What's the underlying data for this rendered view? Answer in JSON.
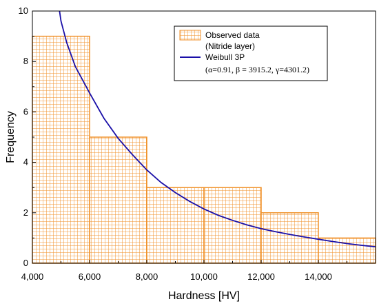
{
  "chart_data": {
    "type": "bar",
    "title": "",
    "xlabel": "Hardness [HV]",
    "ylabel": "Frequency",
    "xlim": [
      4000,
      16000
    ],
    "ylim": [
      0,
      10
    ],
    "x_ticks": [
      4000,
      6000,
      8000,
      10000,
      12000,
      14000
    ],
    "x_tick_labels": [
      "4,000",
      "6,000",
      "8,000",
      "10,000",
      "12,000",
      "14,000"
    ],
    "y_ticks": [
      0,
      2,
      4,
      6,
      8,
      10
    ],
    "y_tick_labels": [
      "0",
      "2",
      "4",
      "6",
      "8",
      "10"
    ],
    "grid": false,
    "legend_position": "top-right",
    "series": [
      {
        "name": "Observed data (Nitride layer)",
        "legend_lines": [
          "Observed data",
          "(Nitride layer)"
        ],
        "type": "histogram",
        "bins": [
          {
            "x0": 4000,
            "x1": 6000,
            "value": 9
          },
          {
            "x0": 6000,
            "x1": 8000,
            "value": 5
          },
          {
            "x0": 8000,
            "x1": 10000,
            "value": 3
          },
          {
            "x0": 10000,
            "x1": 12000,
            "value": 3
          },
          {
            "x0": 12000,
            "x1": 14000,
            "value": 2
          },
          {
            "x0": 14000,
            "x1": 16000,
            "value": 1
          }
        ],
        "color": "#f0922b",
        "pattern": "grid"
      },
      {
        "name": "Weibull 3P",
        "type": "line",
        "params_label": "(α=0.91, β = 3915.2, γ=4301.2)",
        "points": [
          [
            4950,
            10.0
          ],
          [
            5000,
            9.6
          ],
          [
            5200,
            8.75
          ],
          [
            5500,
            7.8
          ],
          [
            6000,
            6.75
          ],
          [
            6500,
            5.75
          ],
          [
            7000,
            4.95
          ],
          [
            7500,
            4.3
          ],
          [
            8000,
            3.7
          ],
          [
            8500,
            3.2
          ],
          [
            9000,
            2.8
          ],
          [
            9500,
            2.45
          ],
          [
            10000,
            2.15
          ],
          [
            10500,
            1.9
          ],
          [
            11000,
            1.7
          ],
          [
            11500,
            1.52
          ],
          [
            12000,
            1.37
          ],
          [
            12500,
            1.25
          ],
          [
            13000,
            1.14
          ],
          [
            13500,
            1.04
          ],
          [
            14000,
            0.95
          ],
          [
            14500,
            0.86
          ],
          [
            15000,
            0.78
          ],
          [
            15500,
            0.71
          ],
          [
            16000,
            0.65
          ]
        ],
        "color": "#1a0fa8"
      }
    ]
  }
}
